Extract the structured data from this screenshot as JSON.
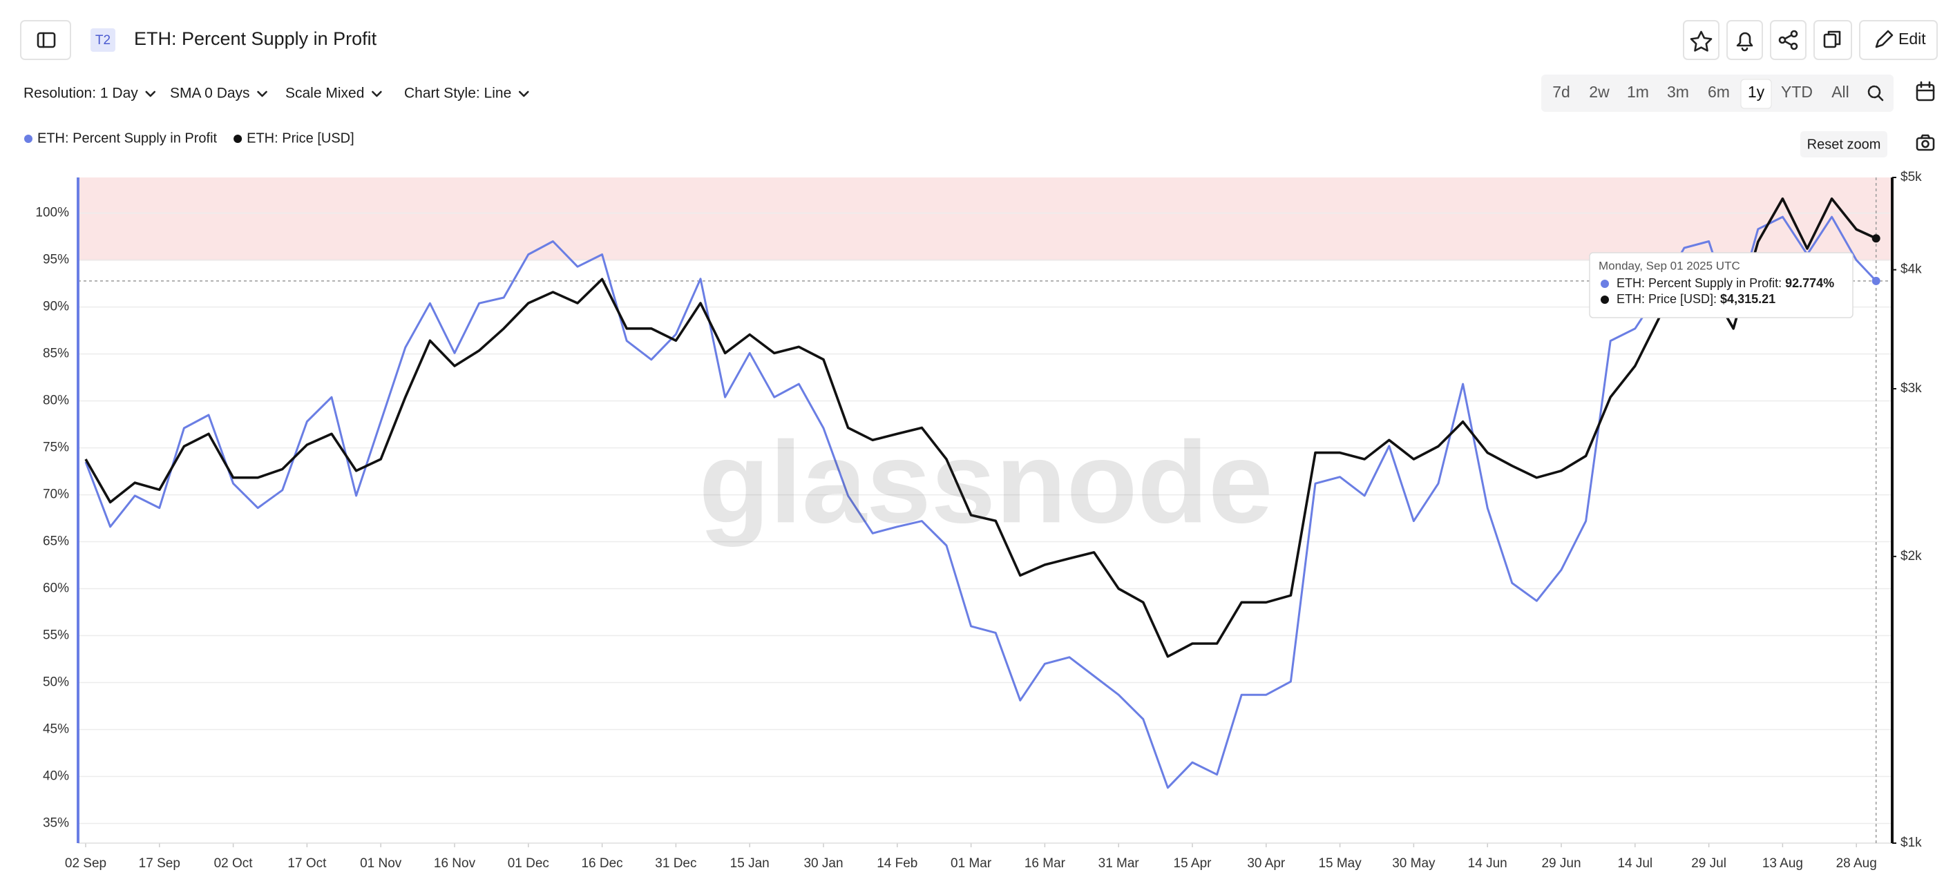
{
  "header": {
    "badge": "T2",
    "title": "ETH: Percent Supply in Profit",
    "edit": "Edit"
  },
  "toolbar": {
    "dropdowns": [
      "Resolution: 1 Day",
      "SMA 0 Days",
      "Scale Mixed",
      "Chart Style: Line"
    ],
    "ranges": [
      "7d",
      "2w",
      "1m",
      "3m",
      "6m",
      "1y",
      "YTD",
      "All"
    ],
    "active_range": "1y"
  },
  "reset_zoom": "Reset zoom",
  "watermark": "glassnode",
  "tooltip": {
    "title": "Monday, Sep 01 2025 UTC",
    "rows": [
      {
        "label": "ETH: Percent Supply in Profit:",
        "value_label": "92.774%"
      },
      {
        "label": "ETH: Price [USD]:",
        "value_label": "$4,315.21"
      }
    ]
  },
  "chart_data": {
    "type": "line",
    "x": [
      "02 Sep",
      "07 Sep",
      "12 Sep",
      "17 Sep",
      "22 Sep",
      "27 Sep",
      "02 Oct",
      "07 Oct",
      "12 Oct",
      "17 Oct",
      "22 Oct",
      "27 Oct",
      "01 Nov",
      "06 Nov",
      "11 Nov",
      "16 Nov",
      "21 Nov",
      "26 Nov",
      "01 Dec",
      "06 Dec",
      "11 Dec",
      "16 Dec",
      "21 Dec",
      "26 Dec",
      "31 Dec",
      "05 Jan",
      "10 Jan",
      "15 Jan",
      "20 Jan",
      "25 Jan",
      "30 Jan",
      "04 Feb",
      "09 Feb",
      "14 Feb",
      "19 Feb",
      "24 Feb",
      "01 Mar",
      "06 Mar",
      "11 Mar",
      "16 Mar",
      "21 Mar",
      "26 Mar",
      "31 Mar",
      "05 Apr",
      "10 Apr",
      "15 Apr",
      "20 Apr",
      "25 Apr",
      "30 Apr",
      "05 May",
      "10 May",
      "15 May",
      "20 May",
      "25 May",
      "30 May",
      "04 Jun",
      "09 Jun",
      "14 Jun",
      "19 Jun",
      "24 Jun",
      "29 Jun",
      "04 Jul",
      "09 Jul",
      "14 Jul",
      "19 Jul",
      "24 Jul",
      "29 Jul",
      "03 Aug",
      "08 Aug",
      "13 Aug",
      "18 Aug",
      "23 Aug",
      "28 Aug",
      "01 Sep"
    ],
    "series": [
      {
        "name": "ETH: Percent Supply in Profit",
        "color": "#6a7ee4",
        "values": [
          73.5,
          66.6,
          69.9,
          68.6,
          77.1,
          78.5,
          71.2,
          68.6,
          70.5,
          77.8,
          80.4,
          69.9,
          77.8,
          85.7,
          90.4,
          85.1,
          90.4,
          91.0,
          95.6,
          97.0,
          94.3,
          95.6,
          86.4,
          84.4,
          87.1,
          93.0,
          80.4,
          85.1,
          80.4,
          81.8,
          77.1,
          69.9,
          65.9,
          66.6,
          67.2,
          64.6,
          56.0,
          55.3,
          48.1,
          52.0,
          52.7,
          50.7,
          48.7,
          46.1,
          38.8,
          41.5,
          40.2,
          48.7,
          48.7,
          50.1,
          71.2,
          71.9,
          69.9,
          75.2,
          67.2,
          71.2,
          81.8,
          68.6,
          60.6,
          58.7,
          62.0,
          67.2,
          86.4,
          87.7,
          91.7,
          96.3,
          97.0,
          89.0,
          98.3,
          99.6,
          95.6,
          99.6,
          95.0,
          92.774
        ]
      },
      {
        "name": "ETH: Price [USD]",
        "color": "#111111",
        "axis": "y2",
        "values": [
          2530,
          2280,
          2390,
          2350,
          2610,
          2690,
          2420,
          2420,
          2470,
          2620,
          2690,
          2460,
          2530,
          2940,
          3370,
          3170,
          3290,
          3470,
          3690,
          3790,
          3690,
          3910,
          3470,
          3470,
          3370,
          3690,
          3270,
          3420,
          3270,
          3320,
          3220,
          2730,
          2650,
          2690,
          2730,
          2530,
          2210,
          2180,
          1910,
          1960,
          1990,
          2020,
          1850,
          1790,
          1570,
          1620,
          1620,
          1790,
          1790,
          1820,
          2570,
          2570,
          2530,
          2650,
          2530,
          2610,
          2770,
          2570,
          2490,
          2420,
          2460,
          2550,
          2940,
          3170,
          3570,
          3850,
          3850,
          3470,
          4280,
          4750,
          4210,
          4750,
          4410,
          4315.21
        ]
      }
    ],
    "xticks": [
      "02 Sep",
      "17 Sep",
      "02 Oct",
      "17 Oct",
      "01 Nov",
      "16 Nov",
      "01 Dec",
      "16 Dec",
      "31 Dec",
      "15 Jan",
      "30 Jan",
      "14 Feb",
      "01 Mar",
      "16 Mar",
      "31 Mar",
      "15 Apr",
      "30 Apr",
      "15 May",
      "30 May",
      "14 Jun",
      "29 Jun",
      "14 Jul",
      "29 Jul",
      "13 Aug",
      "28 Aug"
    ],
    "ylim": [
      32.9,
      103.8
    ],
    "yticks": [
      {
        "value": 35,
        "label": "35%"
      },
      {
        "value": 40,
        "label": "40%"
      },
      {
        "value": 45,
        "label": "45%"
      },
      {
        "value": 50,
        "label": "50%"
      },
      {
        "value": 55,
        "label": "55%"
      },
      {
        "value": 60,
        "label": "60%"
      },
      {
        "value": 65,
        "label": "65%"
      },
      {
        "value": 70,
        "label": "70%"
      },
      {
        "value": 75,
        "label": "75%"
      },
      {
        "value": 80,
        "label": "80%"
      },
      {
        "value": 85,
        "label": "85%"
      },
      {
        "value": 90,
        "label": "90%"
      },
      {
        "value": 95,
        "label": "95%"
      },
      {
        "value": 100,
        "label": "100%"
      }
    ],
    "y2lim": [
      1000,
      5000
    ],
    "y2log": true,
    "y2ticks": [
      {
        "value": 1000,
        "label": "$1k"
      },
      {
        "value": 2000,
        "label": "$2k"
      },
      {
        "value": 3000,
        "label": "$3k"
      },
      {
        "value": 4000,
        "label": "$4k"
      },
      {
        "value": 5000,
        "label": "$5k"
      }
    ],
    "grid": true,
    "highlight": {
      "from": 95,
      "color": "#fbe5e5"
    }
  }
}
